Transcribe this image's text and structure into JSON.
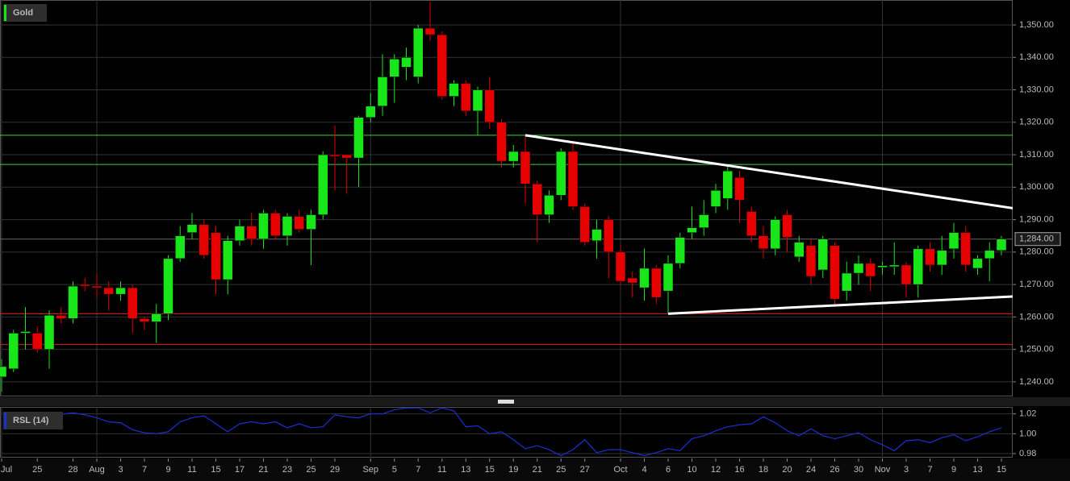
{
  "chart_data": [
    {
      "type": "candlestick",
      "title": "Gold",
      "categories": [
        "Jul",
        null,
        null,
        "25",
        null,
        null,
        "28",
        null,
        "Aug",
        null,
        "3",
        null,
        "7",
        null,
        "9",
        null,
        "11",
        null,
        "15",
        null,
        "17",
        null,
        "21",
        null,
        "23",
        null,
        "25",
        null,
        "29",
        null,
        null,
        "Sep",
        null,
        "5",
        null,
        "7",
        null,
        "11",
        null,
        "13",
        null,
        "15",
        null,
        "19",
        null,
        "21",
        null,
        "25",
        null,
        "27",
        null,
        null,
        "Oct",
        null,
        "4",
        null,
        "6",
        null,
        "10",
        null,
        "12",
        null,
        "16",
        null,
        "18",
        null,
        "20",
        null,
        "24",
        null,
        "26",
        null,
        "30",
        null,
        "Nov",
        null,
        "3",
        null,
        "7",
        null,
        "9",
        null,
        "13",
        null,
        "15"
      ],
      "open": [
        1241.5,
        1244,
        1255,
        1255,
        1250,
        1260.5,
        1259.5,
        1270,
        1269.5,
        1269,
        1267,
        1269,
        1259.5,
        1258.5,
        1261,
        1278,
        1286,
        1288.5,
        1286,
        1271.5,
        1283.5,
        1288,
        1284,
        1292,
        1285,
        1291,
        1287,
        1291.5,
        1310,
        1310,
        1309,
        1321.5,
        1325,
        1334,
        1337,
        1334,
        1349,
        1347,
        1328,
        1332,
        1323.5,
        1330,
        1320,
        1308,
        1311,
        1301,
        1291.5,
        1297.5,
        1311,
        1294,
        1283.5,
        1290,
        1280,
        1272,
        1269,
        1275,
        1268,
        1276.5,
        1286,
        1287.5,
        1294,
        1296.5,
        1303,
        1292.5,
        1285,
        1281,
        1291.5,
        1278.5,
        1282,
        1274.5,
        1282,
        1268,
        1273.5,
        1276.5,
        1275.3,
        1275.5,
        1276,
        1270,
        1281,
        1276,
        1281,
        1286,
        1275,
        1278,
        1280.5
      ],
      "high": [
        1247,
        1256,
        1263,
        1257,
        1262,
        1263,
        1271,
        1272,
        1273,
        1271,
        1271,
        1270,
        1260,
        1264,
        1279,
        1288,
        1292,
        1290,
        1288,
        1285,
        1290,
        1292,
        1293,
        1293,
        1292,
        1293,
        1293,
        1311,
        1319,
        1310,
        1322,
        1329,
        1341,
        1341,
        1343,
        1350,
        1357,
        1348,
        1333,
        1333,
        1331,
        1334,
        1321,
        1313,
        1316,
        1302,
        1299,
        1312,
        1314,
        1295,
        1290,
        1291,
        1282,
        1274,
        1281,
        1276,
        1279,
        1286,
        1294,
        1296,
        1301,
        1307,
        1305,
        1294,
        1288,
        1291,
        1293,
        1285,
        1284,
        1285,
        1283,
        1277,
        1279,
        1278,
        1277,
        1283,
        1277,
        1282,
        1283,
        1285,
        1289,
        1288,
        1279,
        1283,
        1285
      ],
      "low": [
        1237,
        1243,
        1250,
        1249,
        1244,
        1258,
        1258,
        1268,
        1266,
        1262,
        1265,
        1255,
        1256,
        1252,
        1259,
        1277,
        1284,
        1278,
        1267,
        1267,
        1282,
        1282,
        1281,
        1284,
        1282,
        1286,
        1276,
        1290,
        1299,
        1298,
        1300,
        1320,
        1322,
        1326,
        1333,
        1332,
        1345,
        1327,
        1325,
        1322,
        1316,
        1318,
        1306,
        1306,
        1295,
        1283,
        1289,
        1296,
        1293,
        1282,
        1278,
        1272,
        1270,
        1266,
        1265,
        1264,
        1261,
        1275,
        1284,
        1285,
        1292,
        1293,
        1289,
        1283,
        1278,
        1279,
        1280,
        1277,
        1270,
        1272,
        1264,
        1265,
        1270,
        1268,
        1273,
        1273,
        1266,
        1266,
        1274,
        1273,
        1278,
        1274,
        1273,
        1271,
        1279
      ],
      "close": [
        1244.7,
        1255,
        1255.5,
        1250,
        1260.5,
        1259.5,
        1269.5,
        1269.5,
        1269,
        1267,
        1269,
        1259.5,
        1258.5,
        1261,
        1278,
        1285,
        1288.5,
        1279,
        1271.5,
        1283.5,
        1288,
        1284,
        1292,
        1285,
        1291,
        1287,
        1291.5,
        1310,
        1309.5,
        1309,
        1321.5,
        1325,
        1334,
        1339.5,
        1340,
        1349,
        1347,
        1328,
        1332,
        1323.5,
        1330,
        1320,
        1308,
        1311,
        1301,
        1291.5,
        1297.5,
        1311,
        1294,
        1283,
        1287,
        1280,
        1271,
        1270.5,
        1275,
        1266,
        1276.5,
        1284.5,
        1287.5,
        1291.5,
        1299,
        1305,
        1296,
        1285,
        1281,
        1290,
        1284.5,
        1283,
        1272.5,
        1284,
        1265.5,
        1273.5,
        1276.5,
        1272.5,
        1275.8,
        1276,
        1270,
        1281,
        1276,
        1280.5,
        1286,
        1276,
        1278,
        1280.5,
        1284
      ],
      "up_color": "#19e619",
      "down_color": "#e60000",
      "ylim": [
        1235.5,
        1357.7
      ],
      "yticks": [
        {
          "value": 1240,
          "label": "1,240.00"
        },
        {
          "value": 1250,
          "label": "1,250.00"
        },
        {
          "value": 1260,
          "label": "1,260.00"
        },
        {
          "value": 1270,
          "label": "1,270.00"
        },
        {
          "value": 1280,
          "label": "1,280.00"
        },
        {
          "value": 1290,
          "label": "1,290.00"
        },
        {
          "value": 1300,
          "label": "1,300.00"
        },
        {
          "value": 1310,
          "label": "1,310.00"
        },
        {
          "value": 1320,
          "label": "1,320.00"
        },
        {
          "value": 1330,
          "label": "1,330.00"
        },
        {
          "value": 1340,
          "label": "1,340.00"
        },
        {
          "value": 1350,
          "label": "1,350.00"
        }
      ],
      "hlines": [
        {
          "value": 1316,
          "color": "#3cd23c"
        },
        {
          "value": 1307,
          "color": "#3cd23c"
        },
        {
          "value": 1261,
          "color": "#e02020"
        },
        {
          "value": 1251.5,
          "color": "#e02020"
        }
      ],
      "trendlines": [
        {
          "x": [
            44,
            85
          ],
          "values": [
            1316,
            1293.5
          ]
        },
        {
          "x": [
            56,
            85
          ],
          "values": [
            1261,
            1266.3
          ]
        }
      ],
      "last_price": {
        "value": 1284,
        "label": "1,284.00"
      }
    },
    {
      "type": "line",
      "title": "RSL (14)",
      "color": "#1a2fd0",
      "values": [
        null,
        null,
        null,
        null,
        null,
        1.0196,
        1.021,
        1.019,
        1.016,
        1.012,
        1.011,
        1.004,
        1.001,
        1.0,
        1.002,
        1.012,
        1.016,
        1.018,
        1.01,
        1.002,
        1.01,
        1.012,
        1.01,
        1.012,
        1.006,
        1.01,
        1.006,
        1.007,
        1.019,
        1.017,
        1.016,
        1.02,
        1.02,
        1.024,
        1.026,
        1.026,
        1.021,
        1.026,
        1.023,
        1.007,
        1.008,
        1.0,
        1.002,
        0.994,
        0.985,
        0.988,
        0.984,
        0.978,
        0.984,
        0.994,
        0.981,
        0.984,
        0.984,
        0.981,
        0.978,
        0.981,
        0.985,
        0.983,
        0.995,
        0.998,
        1.003,
        1.007,
        1.009,
        1.01,
        1.017,
        1.011,
        1.003,
        0.998,
        1.005,
        0.998,
        0.995,
        0.998,
        1.001,
        0.994,
        0.989,
        0.983,
        0.993,
        0.994,
        0.991,
        0.996,
        0.999,
        0.993,
        0.997,
        1.002,
        1.006
      ],
      "ylim": [
        0.976,
        1.027
      ],
      "yticks": [
        1.02,
        {
          "value": 1.0,
          "label": "1.00"
        },
        0.98
      ]
    }
  ]
}
